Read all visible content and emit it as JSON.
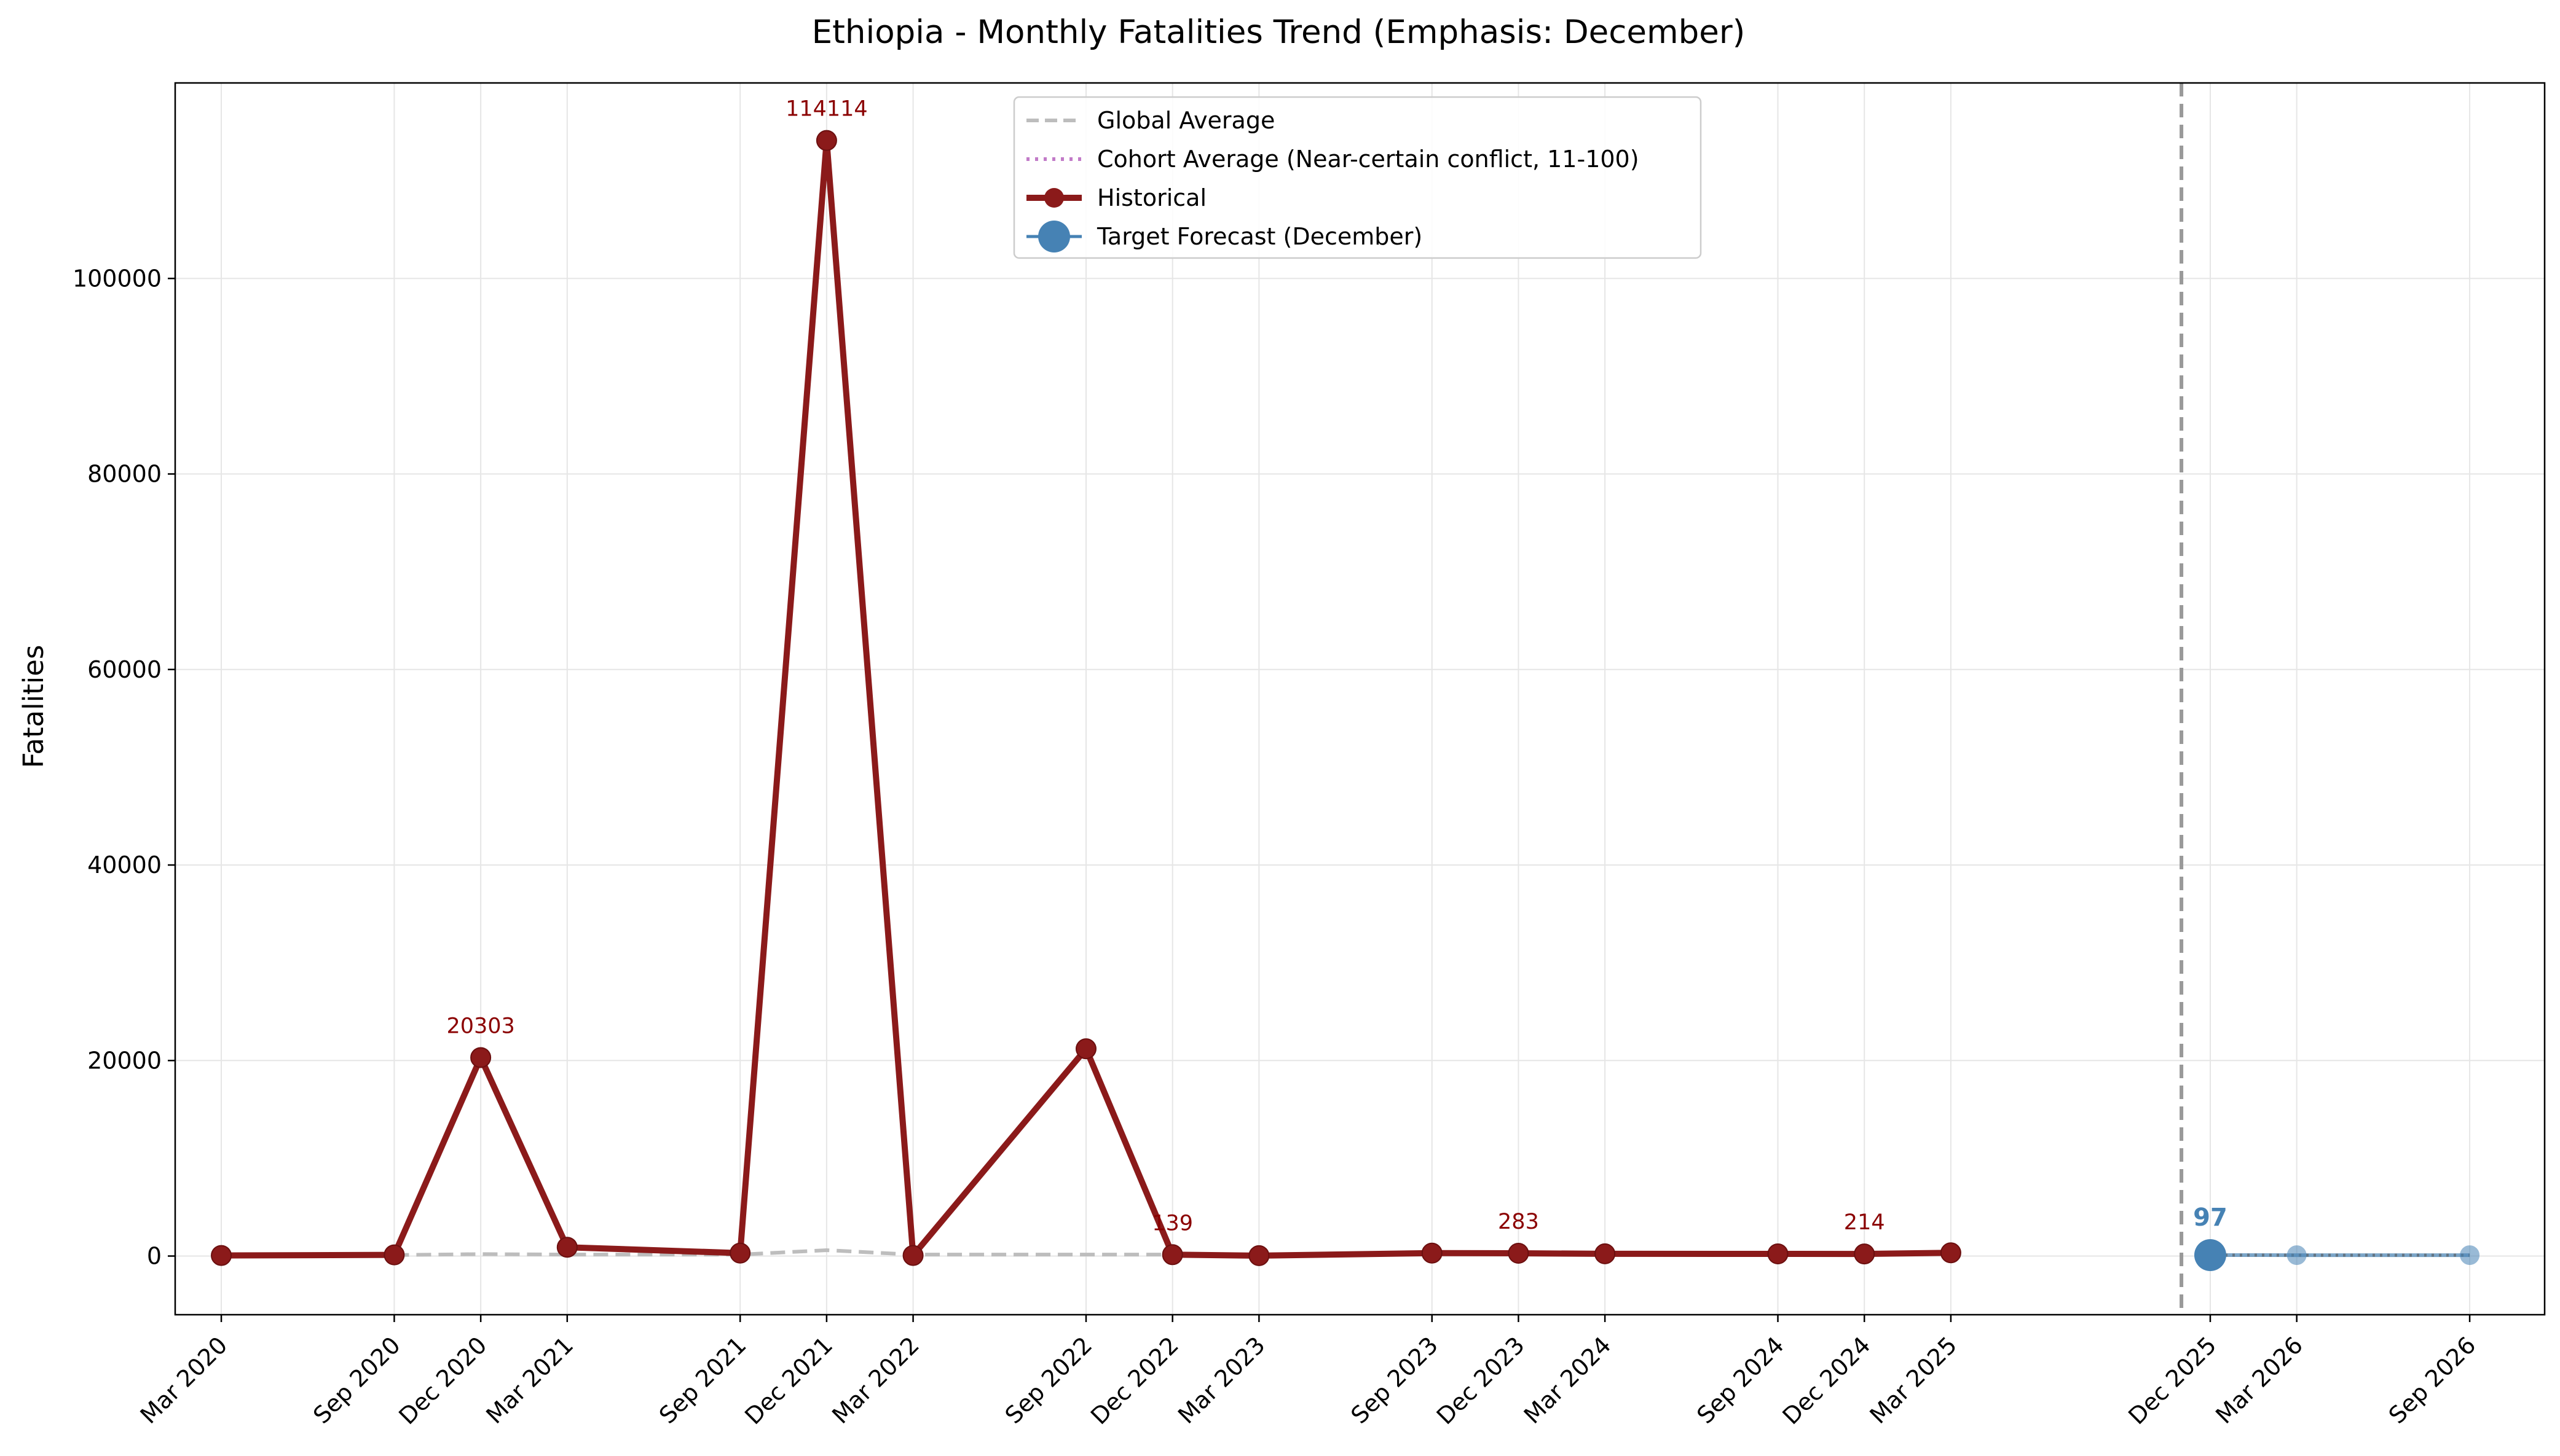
{
  "chart_data": {
    "type": "line",
    "title": "Ethiopia - Monthly Fatalities Trend (Emphasis: December)",
    "xlabel": "",
    "ylabel": "Fatalities",
    "ylim": [
      -6000,
      120000
    ],
    "yticks": [
      0,
      20000,
      40000,
      60000,
      80000,
      100000
    ],
    "x_tick_labels": [
      "Mar 2020",
      "Sep 2020",
      "Dec 2020",
      "Mar 2021",
      "Sep 2021",
      "Dec 2021",
      "Mar 2022",
      "Sep 2022",
      "Dec 2022",
      "Mar 2023",
      "Sep 2023",
      "Dec 2023",
      "Mar 2024",
      "Sep 2024",
      "Dec 2024",
      "Mar 2025",
      "Dec 2025",
      "Mar 2026",
      "Sep 2026"
    ],
    "grid": true,
    "legend_position": "upper center",
    "forecast_divider": "Nov 2025",
    "series": [
      {
        "name": "Global Average",
        "style": "dashed",
        "color": "#bdbdbd",
        "x": [
          "Sep 2020",
          "Dec 2020",
          "Mar 2021",
          "Sep 2021",
          "Dec 2021",
          "Mar 2022",
          "Sep 2022",
          "Dec 2022"
        ],
        "values": [
          100,
          200,
          150,
          150,
          600,
          150,
          150,
          150
        ]
      },
      {
        "name": "Cohort Average (Near-certain conflict, 11-100)",
        "style": "dotted",
        "color": "#c27bc8",
        "x": [],
        "values": []
      },
      {
        "name": "Historical",
        "style": "solid-markers",
        "color": "#8b1a1a",
        "x": [
          "Mar 2020",
          "Sep 2020",
          "Dec 2020",
          "Mar 2021",
          "Sep 2021",
          "Dec 2021",
          "Mar 2022",
          "Sep 2022",
          "Dec 2022",
          "Mar 2023",
          "Sep 2023",
          "Dec 2023",
          "Mar 2024",
          "Sep 2024",
          "Dec 2024",
          "Mar 2025"
        ],
        "values": [
          60,
          120,
          20303,
          900,
          300,
          114114,
          60,
          21200,
          139,
          40,
          300,
          283,
          230,
          220,
          214,
          330
        ]
      },
      {
        "name": "Target Forecast (December)",
        "style": "forecast",
        "color": "#4682b4",
        "x": [
          "Dec 2025",
          "Mar 2026",
          "Sep 2026"
        ],
        "values": [
          97,
          90,
          90
        ]
      }
    ],
    "annotations": [
      {
        "x": "Dec 2020",
        "y": 20303,
        "text": "20303",
        "kind": "hist"
      },
      {
        "x": "Dec 2021",
        "y": 114114,
        "text": "114114",
        "kind": "hist"
      },
      {
        "x": "Dec 2022",
        "y": 139,
        "text": "139",
        "kind": "hist"
      },
      {
        "x": "Dec 2023",
        "y": 283,
        "text": "283",
        "kind": "hist"
      },
      {
        "x": "Dec 2024",
        "y": 214,
        "text": "214",
        "kind": "hist"
      },
      {
        "x": "Dec 2025",
        "y": 97,
        "text": "97",
        "kind": "forecast"
      }
    ],
    "colors": {
      "historical": "#8b1a1a",
      "forecast": "#4682b4",
      "global_avg": "#bdbdbd",
      "cohort_avg": "#c27bc8",
      "divider": "#999999",
      "grid": "#e6e6e6"
    }
  }
}
